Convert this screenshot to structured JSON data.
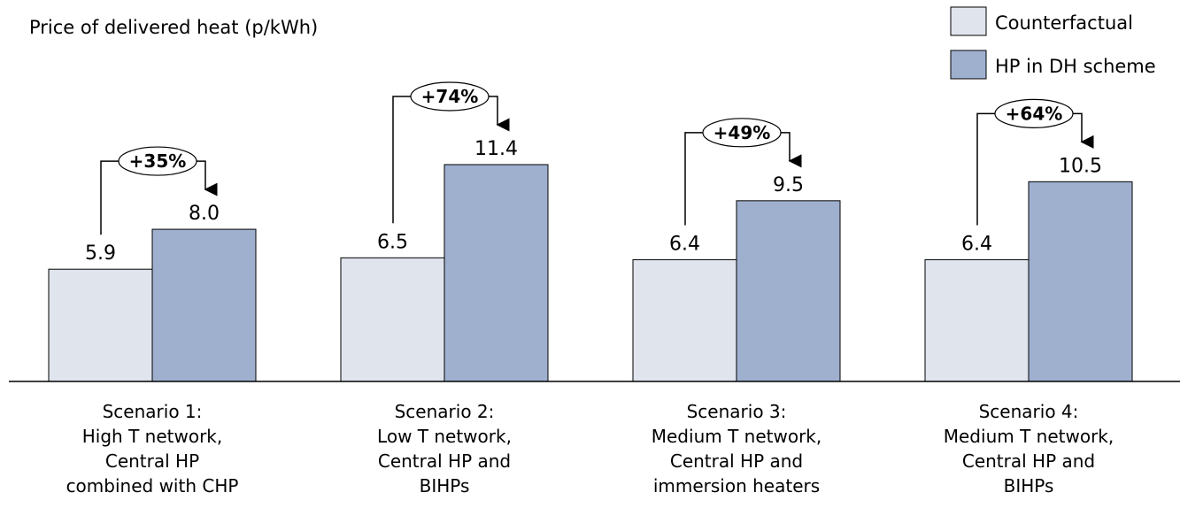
{
  "chart_data": {
    "type": "bar",
    "title": "Price of delivered heat (p/kWh)",
    "categories": [
      [
        "Scenario 1:",
        "High T network,",
        "Central HP",
        "combined with CHP"
      ],
      [
        "Scenario 2:",
        "Low T network,",
        "Central HP and",
        "BIHPs"
      ],
      [
        "Scenario 3:",
        "Medium T network,",
        "Central HP and",
        "immersion heaters"
      ],
      [
        "Scenario 4:",
        "Medium T network,",
        "Central HP and",
        "BIHPs"
      ]
    ],
    "series": [
      {
        "name": "Counterfactual",
        "values": [
          5.9,
          6.5,
          6.4,
          6.4
        ],
        "labels": [
          "5.9",
          "6.5",
          "6.4",
          "6.4"
        ],
        "color": "#dfe4ed"
      },
      {
        "name": "HP in DH scheme",
        "values": [
          8.0,
          11.4,
          9.5,
          10.5
        ],
        "labels": [
          "8.0",
          "11.4",
          "9.5",
          "10.5"
        ],
        "color": "#9fb0cf"
      }
    ],
    "increases": [
      "+35%",
      "+74%",
      "+49%",
      "+64%"
    ],
    "ylim": [
      0,
      11.4
    ],
    "grid": false,
    "legend_position": "top-right",
    "xlabel": "",
    "ylabel": ""
  }
}
